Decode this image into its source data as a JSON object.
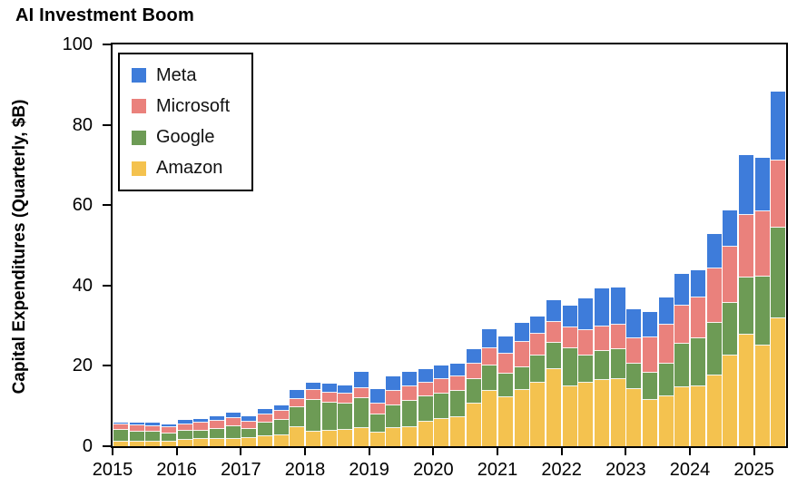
{
  "page": {
    "background": "#ffffff"
  },
  "chart_data": {
    "type": "bar",
    "stacked": true,
    "title": "AI Investment Boom",
    "ylabel": "Capital Expenditures (Quarterly, $B)",
    "ylim": [
      0,
      100
    ],
    "yticks": [
      0,
      20,
      40,
      60,
      80,
      100
    ],
    "xticks": [
      "2015",
      "2016",
      "2017",
      "2018",
      "2019",
      "2020",
      "2021",
      "2022",
      "2023",
      "2024",
      "2025"
    ],
    "x": [
      "2015Q1",
      "2015Q2",
      "2015Q3",
      "2015Q4",
      "2016Q1",
      "2016Q2",
      "2016Q3",
      "2016Q4",
      "2017Q1",
      "2017Q2",
      "2017Q3",
      "2017Q4",
      "2018Q1",
      "2018Q2",
      "2018Q3",
      "2018Q4",
      "2019Q1",
      "2019Q2",
      "2019Q3",
      "2019Q4",
      "2020Q1",
      "2020Q2",
      "2020Q3",
      "2020Q4",
      "2021Q1",
      "2021Q2",
      "2021Q3",
      "2021Q4",
      "2022Q1",
      "2022Q2",
      "2022Q3",
      "2022Q4",
      "2023Q1",
      "2023Q2",
      "2023Q3",
      "2023Q4",
      "2024Q1",
      "2024Q2",
      "2024Q3",
      "2024Q4",
      "2025Q1",
      "2025Q2"
    ],
    "grid": false,
    "legend": {
      "position": "upper-left",
      "order": [
        "Meta",
        "Microsoft",
        "Google",
        "Amazon"
      ]
    },
    "series": [
      {
        "name": "Amazon",
        "color": "#f4c24f",
        "values": [
          1.1,
          1.2,
          1.2,
          1.1,
          1.5,
          1.7,
          1.7,
          1.8,
          2.1,
          2.5,
          2.7,
          4.8,
          3.6,
          3.8,
          4.0,
          4.5,
          3.5,
          4.6,
          4.7,
          6.1,
          6.8,
          7.2,
          10.6,
          13.8,
          12.1,
          14.1,
          15.7,
          19.3,
          14.9,
          15.7,
          16.4,
          16.6,
          14.2,
          11.5,
          12.5,
          14.6,
          14.9,
          17.6,
          22.6,
          27.8,
          25.0,
          31.9
        ]
      },
      {
        "name": "Google",
        "color": "#6d9b55",
        "values": [
          2.9,
          2.5,
          2.4,
          2.1,
          2.4,
          2.1,
          2.6,
          3.1,
          2.3,
          3.3,
          3.9,
          5.0,
          7.9,
          7.0,
          6.6,
          7.4,
          4.4,
          5.6,
          6.6,
          6.3,
          6.4,
          6.6,
          6.0,
          6.2,
          5.9,
          5.5,
          6.8,
          6.4,
          9.5,
          6.8,
          7.3,
          7.6,
          6.3,
          6.9,
          8.1,
          11.0,
          12.0,
          13.2,
          13.1,
          14.3,
          17.2,
          22.4
        ]
      },
      {
        "name": "Microsoft",
        "color": "#ea817c",
        "values": [
          1.4,
          1.5,
          1.4,
          1.5,
          1.6,
          2.0,
          2.1,
          2.2,
          1.7,
          2.1,
          2.1,
          1.9,
          2.4,
          2.6,
          2.5,
          2.5,
          2.7,
          3.6,
          3.7,
          3.5,
          3.6,
          3.5,
          4.0,
          4.4,
          5.1,
          6.3,
          5.4,
          5.2,
          5.2,
          6.5,
          6.0,
          6.1,
          6.4,
          8.6,
          9.6,
          9.4,
          10.2,
          13.5,
          13.9,
          15.5,
          16.2,
          16.9
        ]
      },
      {
        "name": "Meta",
        "color": "#3e7cda",
        "values": [
          0.5,
          0.7,
          0.8,
          0.8,
          1.1,
          1.0,
          1.1,
          1.2,
          1.3,
          1.4,
          1.4,
          2.3,
          2.0,
          2.1,
          2.1,
          4.2,
          3.6,
          3.6,
          3.6,
          3.4,
          3.3,
          3.3,
          3.6,
          4.7,
          4.3,
          4.7,
          4.5,
          5.4,
          5.5,
          7.7,
          9.5,
          9.2,
          7.1,
          6.4,
          6.8,
          7.9,
          6.7,
          8.5,
          9.2,
          14.8,
          13.5,
          17.0
        ]
      }
    ]
  }
}
